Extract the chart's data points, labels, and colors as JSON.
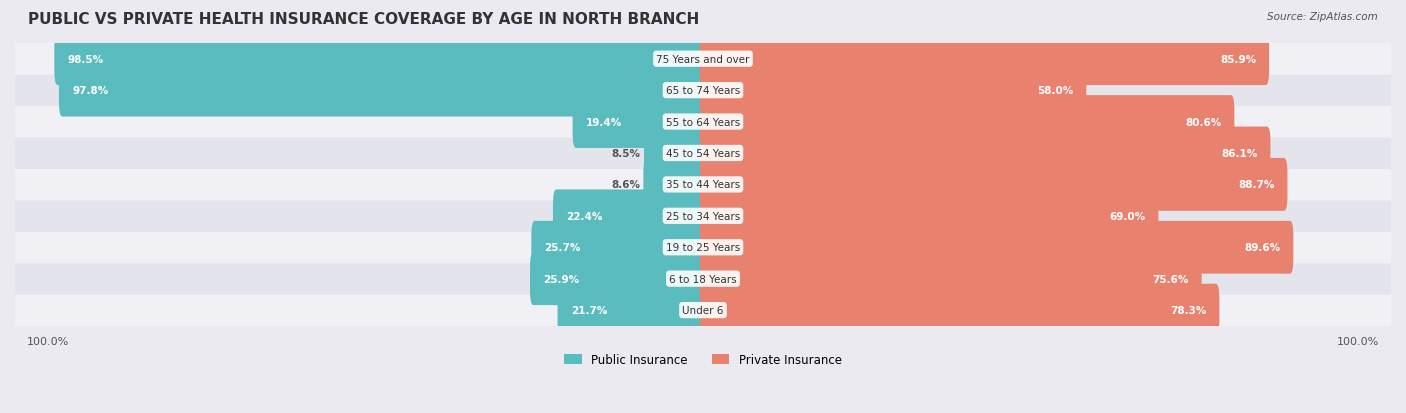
{
  "title": "PUBLIC VS PRIVATE HEALTH INSURANCE COVERAGE BY AGE IN NORTH BRANCH",
  "source": "Source: ZipAtlas.com",
  "categories": [
    "Under 6",
    "6 to 18 Years",
    "19 to 25 Years",
    "25 to 34 Years",
    "35 to 44 Years",
    "45 to 54 Years",
    "55 to 64 Years",
    "65 to 74 Years",
    "75 Years and over"
  ],
  "public_values": [
    21.7,
    25.9,
    25.7,
    22.4,
    8.6,
    8.5,
    19.4,
    97.8,
    98.5
  ],
  "private_values": [
    78.3,
    75.6,
    89.6,
    69.0,
    88.7,
    86.1,
    80.6,
    58.0,
    85.9
  ],
  "public_color": "#5bbcbf",
  "private_color": "#e8826e",
  "public_color_light": "#7ecfd1",
  "private_color_light": "#f0a898",
  "bar_bg_color": "#e8e8ee",
  "row_bg_color_odd": "#f0f0f5",
  "row_bg_color_even": "#e4e4ec",
  "title_color": "#333333",
  "label_color": "#ffffff",
  "category_color": "#333333",
  "axis_label_color": "#555555",
  "max_value": 100.0,
  "legend_public": "Public Insurance",
  "legend_private": "Private Insurance",
  "background_color": "#eaeaf0"
}
